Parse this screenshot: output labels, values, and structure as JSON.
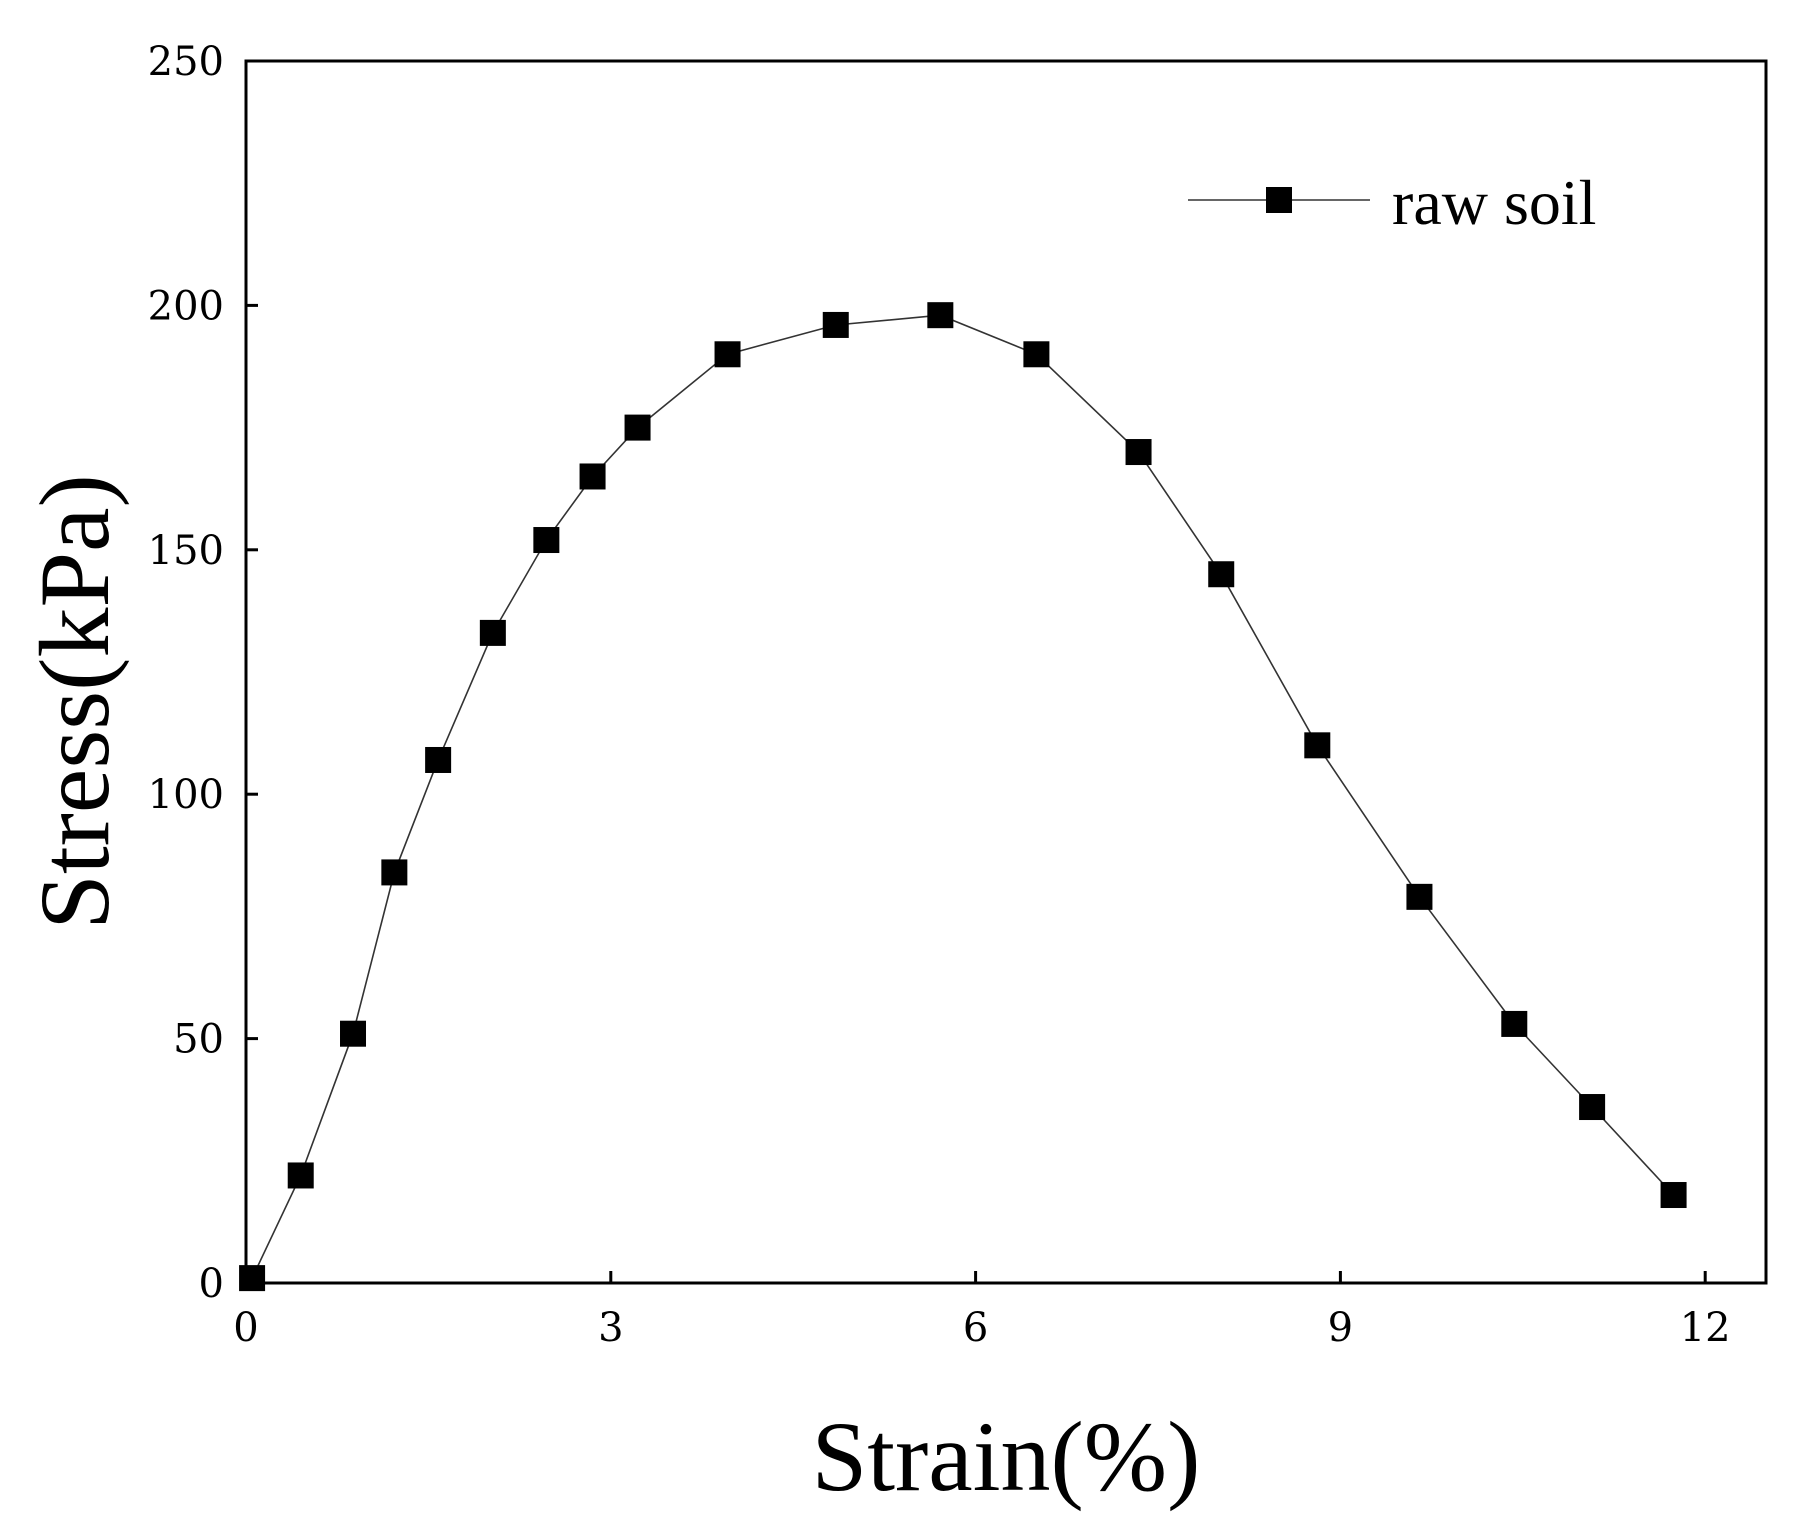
{
  "chart_data": {
    "type": "line",
    "xlabel": "Strain(%)",
    "ylabel": "Stress(kPa)",
    "xlim": [
      0,
      12.5
    ],
    "ylim": [
      0,
      250
    ],
    "xticks": [
      0,
      3,
      6,
      9,
      12
    ],
    "yticks": [
      0,
      50,
      100,
      150,
      200,
      250
    ],
    "xtick_labels": [
      "0",
      "3",
      "6",
      "9",
      "12"
    ],
    "ytick_labels": [
      "0",
      "50",
      "100",
      "150",
      "200",
      "250"
    ],
    "grid": false,
    "legend_position": "top-right",
    "marker": "square",
    "series": [
      {
        "name": "raw soil",
        "color": "#000000",
        "x": [
          0.05,
          0.45,
          0.88,
          1.22,
          1.58,
          2.03,
          2.47,
          2.85,
          3.22,
          3.96,
          4.85,
          5.71,
          6.5,
          7.34,
          8.02,
          8.81,
          9.65,
          10.43,
          11.07,
          11.74
        ],
        "y": [
          1,
          22,
          51,
          84,
          107,
          133,
          152,
          165,
          175,
          190,
          196,
          198,
          190,
          170,
          145,
          110,
          79,
          53,
          36,
          18
        ]
      }
    ]
  }
}
